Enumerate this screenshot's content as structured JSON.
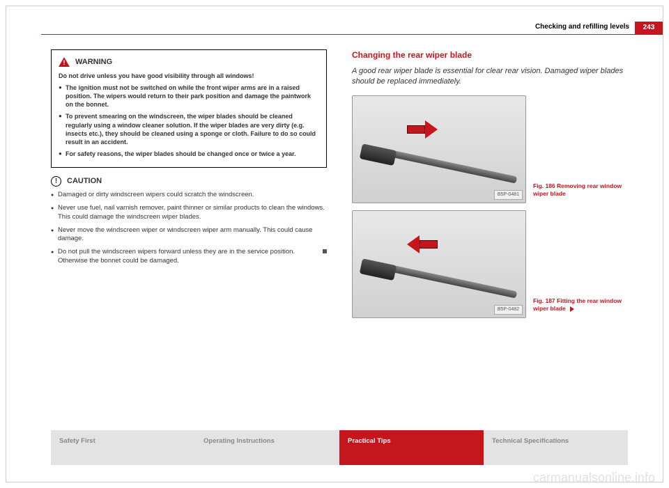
{
  "page": {
    "number": "243",
    "section": "Checking and refilling levels"
  },
  "warning": {
    "title": "WARNING",
    "lead": "Do not drive unless you have good visibility through all windows!",
    "items": [
      "The ignition must not be switched on while the front wiper arms are in a raised position. The wipers would return to their park position and damage the paintwork on the bonnet.",
      "To prevent smearing on the windscreen, the wiper blades should be cleaned regularly using a window cleaner solution. If the wiper blades are very dirty (e.g. insects etc.), they should be cleaned using a sponge or cloth. Failure to do so could result in an accident.",
      "For safety reasons, the wiper blades should be changed once or twice a year."
    ]
  },
  "caution": {
    "title": "CAUTION",
    "items": [
      "Damaged or dirty windscreen wipers could scratch the windscreen.",
      "Never use fuel, nail varnish remover, paint thinner or similar products to clean the windows. This could damage the windscreen wiper blades.",
      "Never move the windscreen wiper or windscreen wiper arm manually. This could cause damage.",
      "Do not pull the windscreen wipers forward unless they are in the service position. Otherwise the bonnet could be damaged."
    ]
  },
  "right": {
    "heading": "Changing the rear wiper blade",
    "lead": "A good rear wiper blade is essential for clear rear vision. Damaged wiper blades should be replaced immediately.",
    "fig186": {
      "label": "B5P-0481",
      "caption": "Fig. 186  Removing rear window wiper blade"
    },
    "fig187": {
      "label": "B5P-0482",
      "caption": "Fig. 187  Fitting the rear window wiper blade"
    }
  },
  "footer": {
    "tab1": "Safety First",
    "tab2": "Operating Instructions",
    "tab3": "Practical Tips",
    "tab4": "Technical Specifications"
  },
  "watermark": "carmanualsonline.info",
  "colors": {
    "accent": "#c4161c",
    "gray_tab": "#e3e3e3",
    "gray_text": "#888888"
  }
}
